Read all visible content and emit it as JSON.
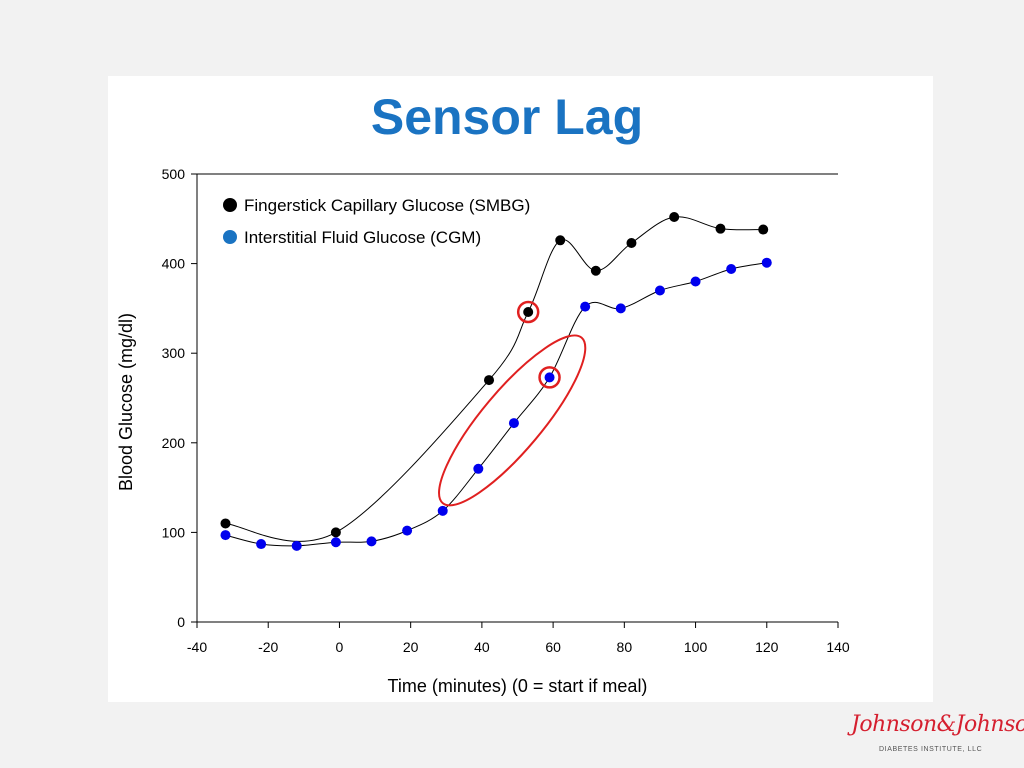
{
  "slide": {
    "title": "Sensor Lag",
    "logo": {
      "brand": "Johnson&Johnson",
      "subtitle": "DIABETES INSTITUTE, LLC"
    }
  },
  "colors": {
    "title": "#1a73c2",
    "smbg": "#000000",
    "cgm": "#0000ee",
    "highlight": "#e02020",
    "legend_cgm": "#1a73c2"
  },
  "chart_data": {
    "type": "scatter",
    "xlabel": "Time (minutes)  (0 = start if meal)",
    "ylabel": "Blood Glucose (mg/dl)",
    "xlim": [
      -40,
      140
    ],
    "ylim": [
      0,
      500
    ],
    "xticks": [
      "-40",
      "-20",
      "0",
      "20",
      "40",
      "60",
      "80",
      "100",
      "120",
      "140"
    ],
    "yticks": [
      "0",
      "100",
      "200",
      "300",
      "400",
      "500"
    ],
    "legend_position": "top-left",
    "series": [
      {
        "name": "Fingerstick Capillary Glucose (SMBG)",
        "color": "#000000",
        "points": [
          [
            -32,
            110
          ],
          [
            -1,
            100
          ],
          [
            42,
            270
          ],
          [
            53,
            346
          ],
          [
            62,
            426
          ],
          [
            72,
            392
          ],
          [
            82,
            423
          ],
          [
            94,
            452
          ],
          [
            107,
            439
          ],
          [
            119,
            438
          ]
        ]
      },
      {
        "name": "Interstitial Fluid Glucose (CGM)",
        "color": "#0000ee",
        "points": [
          [
            -32,
            97
          ],
          [
            -22,
            87
          ],
          [
            -12,
            85
          ],
          [
            -1,
            89
          ],
          [
            9,
            90
          ],
          [
            19,
            102
          ],
          [
            29,
            124
          ],
          [
            39,
            171
          ],
          [
            49,
            222
          ],
          [
            59,
            273
          ],
          [
            69,
            352
          ],
          [
            79,
            350
          ],
          [
            90,
            370
          ],
          [
            100,
            380
          ],
          [
            110,
            394
          ],
          [
            120,
            401
          ]
        ]
      }
    ],
    "annotations": [
      {
        "type": "circle",
        "series": 0,
        "point": [
          53,
          346
        ]
      },
      {
        "type": "circle",
        "series": 1,
        "point": [
          59,
          273
        ]
      },
      {
        "type": "ellipse",
        "covers_x": [
          27,
          70
        ],
        "covers_y": [
          140,
          310
        ]
      }
    ]
  }
}
